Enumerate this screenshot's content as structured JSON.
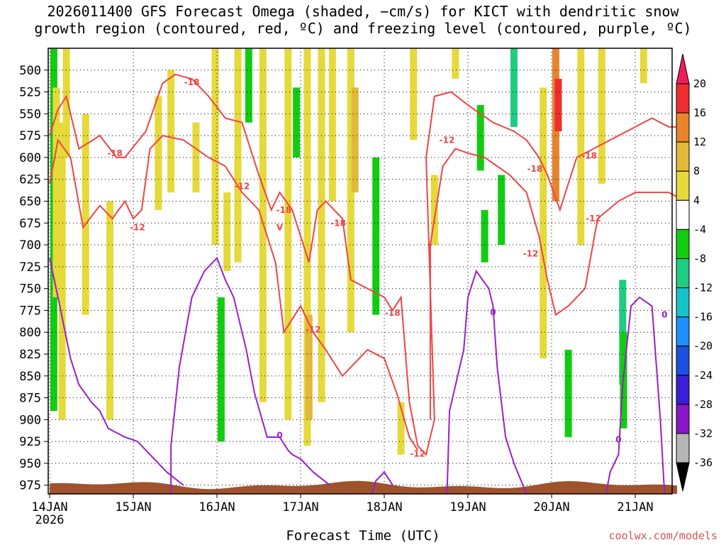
{
  "title": {
    "line1": "2026011400 GFS Forecast Omega (shaded, −cm/s) for KICT with dendritic snow",
    "line2": "growth region (contoured, red, ºC) and freezing level (contoured, purple, ºC)"
  },
  "xlabel": "Forecast Time (UTC)",
  "credit": "coolwx.com/models",
  "chart_data": {
    "type": "heatmap",
    "title": "2026011400 GFS Forecast Omega (shaded, −cm/s) for KICT with dendritic snow growth region (contoured, red, ºC) and freezing level (contoured, purple, ºC)",
    "xlabel": "Forecast Time (UTC)",
    "ylabel": "",
    "x_ticks": [
      "14JAN",
      "15JAN",
      "16JAN",
      "17JAN",
      "18JAN",
      "19JAN",
      "20JAN",
      "21JAN"
    ],
    "x_sub": "2026",
    "xlim_days": [
      0,
      7.5
    ],
    "y_ticks": [
      500,
      525,
      550,
      575,
      600,
      625,
      650,
      675,
      700,
      725,
      750,
      775,
      800,
      825,
      850,
      875,
      900,
      925,
      950,
      975
    ],
    "ylim": [
      475,
      985
    ],
    "grid": true,
    "colorbar": {
      "labels": [
        "20",
        "16",
        "12",
        "8",
        "4",
        "-4",
        "-8",
        "-12",
        "-16",
        "-20",
        "-24",
        "-28",
        "-32",
        "-36"
      ],
      "colors": [
        "#f01d5c",
        "#f02d2d",
        "#e8842c",
        "#e2b93a",
        "#e6d93a",
        "#ffffff",
        "#12cc12",
        "#1fcc80",
        "#17c3c8",
        "#1e90ff",
        "#1d4fe0",
        "#3a1fd6",
        "#8a17c8",
        "#b5b5b5",
        "#000000"
      ]
    },
    "shading": [
      {
        "t": 0.05,
        "p_top": 475,
        "p_bot": 890,
        "value": -8
      },
      {
        "t": 0.08,
        "p_top": 520,
        "p_bot": 760,
        "value": 4
      },
      {
        "t": 0.15,
        "p_top": 560,
        "p_bot": 900,
        "value": 4
      },
      {
        "t": 0.2,
        "p_top": 475,
        "p_bot": 600,
        "value": 4
      },
      {
        "t": 0.43,
        "p_top": 550,
        "p_bot": 780,
        "value": 4
      },
      {
        "t": 0.72,
        "p_top": 650,
        "p_bot": 900,
        "value": 4
      },
      {
        "t": 1.3,
        "p_top": 530,
        "p_bot": 660,
        "value": 4
      },
      {
        "t": 1.45,
        "p_top": 500,
        "p_bot": 640,
        "value": 4
      },
      {
        "t": 1.75,
        "p_top": 560,
        "p_bot": 640,
        "value": 4
      },
      {
        "t": 1.98,
        "p_top": 475,
        "p_bot": 700,
        "value": 4
      },
      {
        "t": 2.05,
        "p_top": 760,
        "p_bot": 925,
        "value": -8
      },
      {
        "t": 2.12,
        "p_top": 640,
        "p_bot": 730,
        "value": 4
      },
      {
        "t": 2.25,
        "p_top": 475,
        "p_bot": 720,
        "value": 4
      },
      {
        "t": 2.38,
        "p_top": 475,
        "p_bot": 560,
        "value": -8
      },
      {
        "t": 2.55,
        "p_top": 475,
        "p_bot": 880,
        "value": 4
      },
      {
        "t": 2.85,
        "p_top": 475,
        "p_bot": 900,
        "value": 4
      },
      {
        "t": 2.95,
        "p_top": 520,
        "p_bot": 600,
        "value": -8
      },
      {
        "t": 3.08,
        "p_top": 475,
        "p_bot": 930,
        "value": 4
      },
      {
        "t": 3.1,
        "p_top": 780,
        "p_bot": 900,
        "value": 8
      },
      {
        "t": 3.25,
        "p_top": 475,
        "p_bot": 880,
        "value": 4
      },
      {
        "t": 3.38,
        "p_top": 475,
        "p_bot": 650,
        "value": 4
      },
      {
        "t": 3.6,
        "p_top": 475,
        "p_bot": 800,
        "value": 4
      },
      {
        "t": 3.65,
        "p_top": 520,
        "p_bot": 640,
        "value": 8
      },
      {
        "t": 3.9,
        "p_top": 600,
        "p_bot": 780,
        "value": -8
      },
      {
        "t": 4.2,
        "p_top": 880,
        "p_bot": 940,
        "value": 4
      },
      {
        "t": 4.35,
        "p_top": 475,
        "p_bot": 580,
        "value": 4
      },
      {
        "t": 4.6,
        "p_top": 620,
        "p_bot": 700,
        "value": 4
      },
      {
        "t": 4.85,
        "p_top": 475,
        "p_bot": 510,
        "value": 4
      },
      {
        "t": 5.15,
        "p_top": 540,
        "p_bot": 615,
        "value": -8
      },
      {
        "t": 5.2,
        "p_top": 660,
        "p_bot": 720,
        "value": -8
      },
      {
        "t": 5.4,
        "p_top": 620,
        "p_bot": 700,
        "value": -8
      },
      {
        "t": 5.55,
        "p_top": 475,
        "p_bot": 565,
        "value": -12
      },
      {
        "t": 5.9,
        "p_top": 520,
        "p_bot": 830,
        "value": 4
      },
      {
        "t": 6.05,
        "p_top": 475,
        "p_bot": 650,
        "value": 12
      },
      {
        "t": 6.08,
        "p_top": 510,
        "p_bot": 570,
        "value": 16
      },
      {
        "t": 6.2,
        "p_top": 820,
        "p_bot": 920,
        "value": -8
      },
      {
        "t": 6.35,
        "p_top": 475,
        "p_bot": 700,
        "value": 4
      },
      {
        "t": 6.6,
        "p_top": 475,
        "p_bot": 630,
        "value": 4
      },
      {
        "t": 6.85,
        "p_top": 740,
        "p_bot": 860,
        "value": -12
      },
      {
        "t": 6.86,
        "p_top": 800,
        "p_bot": 910,
        "value": -8
      },
      {
        "t": 7.1,
        "p_top": 475,
        "p_bot": 515,
        "value": 4
      }
    ],
    "terrain": {
      "color": "#a0522d",
      "label": "surface"
    },
    "series": [
      {
        "color": "#ef4444",
        "labels": [
          {
            "text": "-18",
            "t": 0.78,
            "p": 595
          },
          {
            "t": 1.7,
            "p": 514,
            "text": "-18"
          },
          {
            "t": 1.05,
            "p": 680,
            "text": "-12"
          },
          {
            "t": 2.3,
            "p": 633,
            "text": "-12"
          },
          {
            "t": 2.8,
            "p": 660,
            "text": "-18"
          },
          {
            "t": 2.75,
            "p": 680,
            "text": "V"
          },
          {
            "t": 3.45,
            "p": 675,
            "text": "-18"
          },
          {
            "t": 3.15,
            "p": 797,
            "text": "-12"
          },
          {
            "t": 4.1,
            "p": 778,
            "text": "-18"
          },
          {
            "t": 4.4,
            "p": 939,
            "text": "-12"
          },
          {
            "t": 4.75,
            "p": 580,
            "text": "-12"
          },
          {
            "t": 5.8,
            "p": 613,
            "text": "-18"
          },
          {
            "t": 6.45,
            "p": 598,
            "text": "-18"
          },
          {
            "t": 5.75,
            "p": 710,
            "text": "-12"
          },
          {
            "t": 6.5,
            "p": 670,
            "text": "-12"
          }
        ],
        "lines": [
          [
            [
              0,
              630
            ],
            [
              0.1,
              580
            ],
            [
              0.25,
              600
            ],
            [
              0.4,
              680
            ],
            [
              0.6,
              655
            ],
            [
              0.75,
              670
            ],
            [
              0.9,
              650
            ],
            [
              1.0,
              670
            ],
            [
              1.1,
              660
            ],
            [
              1.2,
              590
            ],
            [
              1.35,
              575
            ],
            [
              1.6,
              580
            ],
            [
              1.9,
              600
            ],
            [
              2.1,
              610
            ],
            [
              2.3,
              640
            ],
            [
              2.5,
              660
            ],
            [
              2.7,
              720
            ],
            [
              2.8,
              800
            ],
            [
              3.0,
              770
            ],
            [
              3.15,
              800
            ],
            [
              3.3,
              820
            ],
            [
              3.5,
              850
            ],
            [
              3.8,
              820
            ],
            [
              4.0,
              830
            ],
            [
              4.15,
              870
            ],
            [
              4.3,
              920
            ],
            [
              4.4,
              935
            ]
          ],
          [
            [
              0,
              575
            ],
            [
              0.1,
              545
            ],
            [
              0.2,
              530
            ],
            [
              0.35,
              590
            ],
            [
              0.6,
              575
            ],
            [
              0.8,
              600
            ],
            [
              0.9,
              600
            ],
            [
              1.15,
              570
            ],
            [
              1.35,
              515
            ],
            [
              1.5,
              505
            ],
            [
              1.7,
              510
            ],
            [
              1.9,
              530
            ],
            [
              2.1,
              555
            ],
            [
              2.3,
              560
            ],
            [
              2.5,
              620
            ],
            [
              2.65,
              660
            ],
            [
              2.75,
              640
            ],
            [
              2.9,
              660
            ],
            [
              3.1,
              720
            ],
            [
              3.2,
              660
            ],
            [
              3.3,
              650
            ],
            [
              3.5,
              670
            ],
            [
              3.6,
              740
            ],
            [
              3.8,
              750
            ],
            [
              4.0,
              760
            ],
            [
              4.1,
              775
            ]
          ],
          [
            [
              4.1,
              775
            ],
            [
              4.2,
              760
            ],
            [
              4.3,
              880
            ],
            [
              4.4,
              930
            ],
            [
              4.5,
              940
            ],
            [
              4.6,
              900
            ],
            [
              4.5,
              600
            ],
            [
              4.6,
              530
            ],
            [
              4.8,
              525
            ],
            [
              5.0,
              540
            ],
            [
              5.3,
              560
            ],
            [
              5.55,
              570
            ],
            [
              5.7,
              580
            ],
            [
              5.85,
              600
            ],
            [
              5.95,
              620
            ],
            [
              6.1,
              660
            ],
            [
              6.3,
              600
            ],
            [
              6.5,
              590
            ],
            [
              6.7,
              580
            ],
            [
              6.9,
              570
            ],
            [
              7.1,
              560
            ],
            [
              7.2,
              555
            ],
            [
              7.4,
              565
            ],
            [
              7.5,
              565
            ]
          ],
          [
            [
              4.55,
              900
            ],
            [
              4.55,
              700
            ],
            [
              4.7,
              610
            ],
            [
              4.85,
              590
            ],
            [
              5.0,
              595
            ],
            [
              5.2,
              600
            ],
            [
              5.5,
              620
            ],
            [
              5.7,
              640
            ],
            [
              5.85,
              690
            ],
            [
              5.95,
              740
            ],
            [
              6.05,
              780
            ],
            [
              6.2,
              770
            ],
            [
              6.4,
              750
            ],
            [
              6.55,
              670
            ],
            [
              6.8,
              650
            ],
            [
              7.0,
              640
            ],
            [
              7.2,
              640
            ],
            [
              7.4,
              640
            ],
            [
              7.5,
              645
            ]
          ]
        ]
      },
      {
        "color": "#9b1fc8",
        "labels": [
          {
            "t": 2.75,
            "p": 918,
            "text": "0"
          },
          {
            "t": 5.3,
            "p": 777,
            "text": "0"
          },
          {
            "t": 7.35,
            "p": 780,
            "text": "0"
          },
          {
            "t": 6.8,
            "p": 923,
            "text": "0"
          }
        ],
        "lines": [
          [
            [
              0,
              715
            ],
            [
              0.1,
              760
            ],
            [
              0.25,
              830
            ],
            [
              0.35,
              860
            ],
            [
              0.5,
              880
            ],
            [
              0.6,
              890
            ],
            [
              0.7,
              910
            ],
            [
              0.9,
              920
            ],
            [
              1.05,
              925
            ],
            [
              1.2,
              940
            ],
            [
              1.4,
              960
            ],
            [
              1.6,
              975
            ]
          ],
          [
            [
              1.45,
              985
            ],
            [
              1.45,
              930
            ],
            [
              1.55,
              840
            ],
            [
              1.7,
              760
            ],
            [
              1.85,
              730
            ],
            [
              2.0,
              715
            ],
            [
              2.1,
              740
            ],
            [
              2.2,
              760
            ],
            [
              2.35,
              820
            ],
            [
              2.45,
              870
            ],
            [
              2.6,
              920
            ],
            [
              2.75,
              920
            ],
            [
              2.85,
              935
            ],
            [
              2.9,
              940
            ],
            [
              3.0,
              945
            ],
            [
              3.15,
              960
            ],
            [
              3.35,
              975
            ]
          ],
          [
            [
              3.85,
              985
            ],
            [
              3.9,
              970
            ],
            [
              4.0,
              960
            ],
            [
              4.1,
              975
            ]
          ],
          [
            [
              4.75,
              985
            ],
            [
              4.78,
              890
            ],
            [
              4.95,
              820
            ],
            [
              5.0,
              760
            ],
            [
              5.1,
              730
            ],
            [
              5.25,
              750
            ],
            [
              5.3,
              770
            ],
            [
              5.35,
              840
            ],
            [
              5.45,
              920
            ],
            [
              5.55,
              950
            ],
            [
              5.7,
              985
            ]
          ],
          [
            [
              6.65,
              985
            ],
            [
              6.7,
              960
            ],
            [
              6.8,
              940
            ],
            [
              6.85,
              860
            ],
            [
              6.95,
              770
            ],
            [
              7.05,
              760
            ],
            [
              7.2,
              770
            ],
            [
              7.3,
              900
            ],
            [
              7.35,
              985
            ]
          ]
        ]
      }
    ]
  }
}
